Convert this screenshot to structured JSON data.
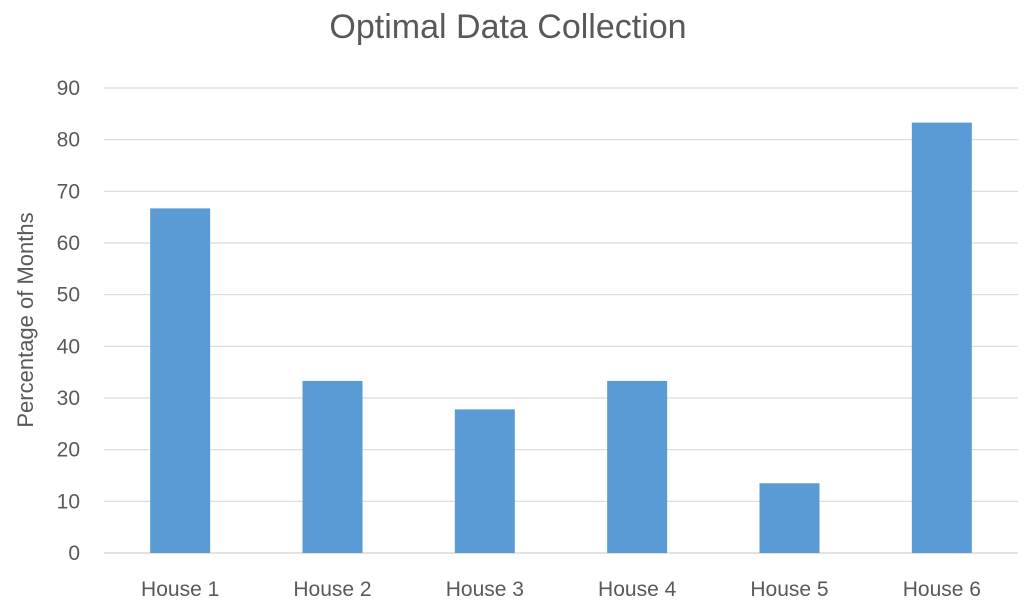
{
  "chart_data": {
    "type": "bar",
    "title": "Optimal Data Collection",
    "xlabel": "",
    "ylabel": "Percentage of Months",
    "ylim": [
      0,
      90
    ],
    "yticks": [
      0,
      10,
      20,
      30,
      40,
      50,
      60,
      70,
      80,
      90
    ],
    "grid": true,
    "categories": [
      "House 1",
      "House 2",
      "House 3",
      "House 4",
      "House 5",
      "House 6"
    ],
    "values": [
      66.7,
      33.3,
      27.8,
      33.3,
      13.5,
      83.3
    ],
    "bar_color": "#5b9bd5"
  }
}
